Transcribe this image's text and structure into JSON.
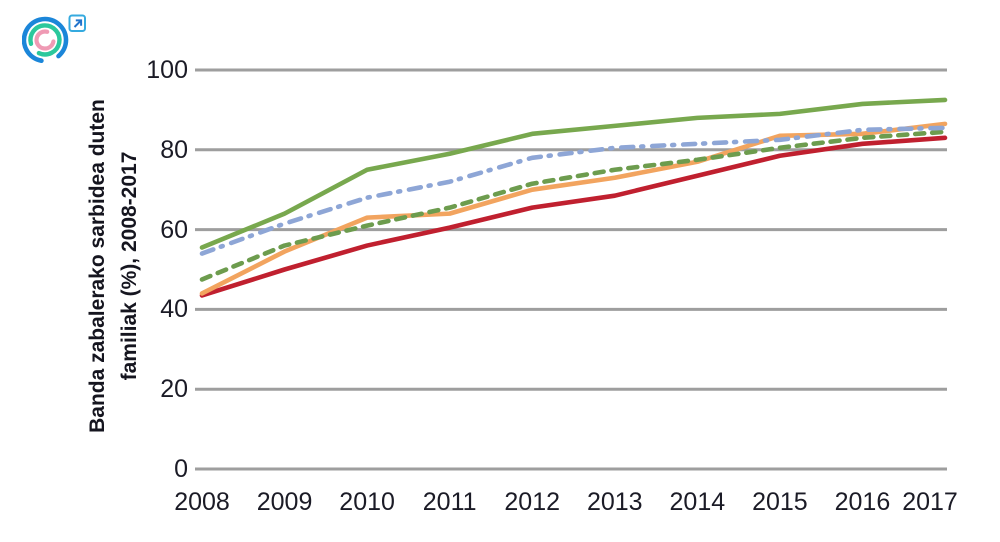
{
  "logo": {
    "ring_outer_color": "#1b86d9",
    "ring_middle_color": "#2bc89c",
    "ring_inner_color": "#ef9ab4",
    "link_box_color": "#35aadf",
    "link_arrow_color": "#2274cc"
  },
  "chart_data": {
    "type": "line",
    "title": "",
    "xlabel": "",
    "ylabel": "Banda zabalerako sarbidea duten familiak (%), 2008-2017",
    "ylabel_lines": [
      "Banda zabalerako sarbidea duten",
      "familiak (%), 2008-2017"
    ],
    "x": [
      2008,
      2009,
      2010,
      2011,
      2012,
      2013,
      2014,
      2015,
      2016,
      2017
    ],
    "ylim": [
      0,
      100
    ],
    "yticks": [
      0,
      20,
      40,
      60,
      80,
      100
    ],
    "grid": "horizontal",
    "grid_color": "#9e9e9e",
    "text_color": "#1b1b26",
    "legend": "none",
    "series": [
      {
        "name": "series-red-solid",
        "color": "#c0202f",
        "style": "solid",
        "values": [
          43.5,
          50,
          56,
          60.5,
          65.5,
          68.5,
          73.5,
          78.5,
          81.5,
          83
        ]
      },
      {
        "name": "series-orange-solid",
        "color": "#f2a45f",
        "style": "solid",
        "values": [
          44,
          54.5,
          63,
          64,
          70,
          73,
          77,
          83.5,
          84,
          86.5
        ]
      },
      {
        "name": "series-green-dashed",
        "color": "#6d9c4e",
        "style": "dashed",
        "values": [
          47.5,
          56,
          61,
          65.5,
          71.5,
          75,
          77.5,
          80.5,
          83,
          84.5
        ]
      },
      {
        "name": "series-blue-dash-dot",
        "color": "#8ea6d6",
        "style": "dash-dot",
        "values": [
          54,
          61.5,
          68,
          72,
          78,
          80.5,
          81.5,
          82.5,
          85,
          85.5
        ]
      },
      {
        "name": "series-green-solid",
        "color": "#78a84e",
        "style": "solid",
        "values": [
          55.5,
          64,
          75,
          79,
          84,
          86,
          88,
          89,
          91.5,
          92.5
        ]
      }
    ]
  }
}
